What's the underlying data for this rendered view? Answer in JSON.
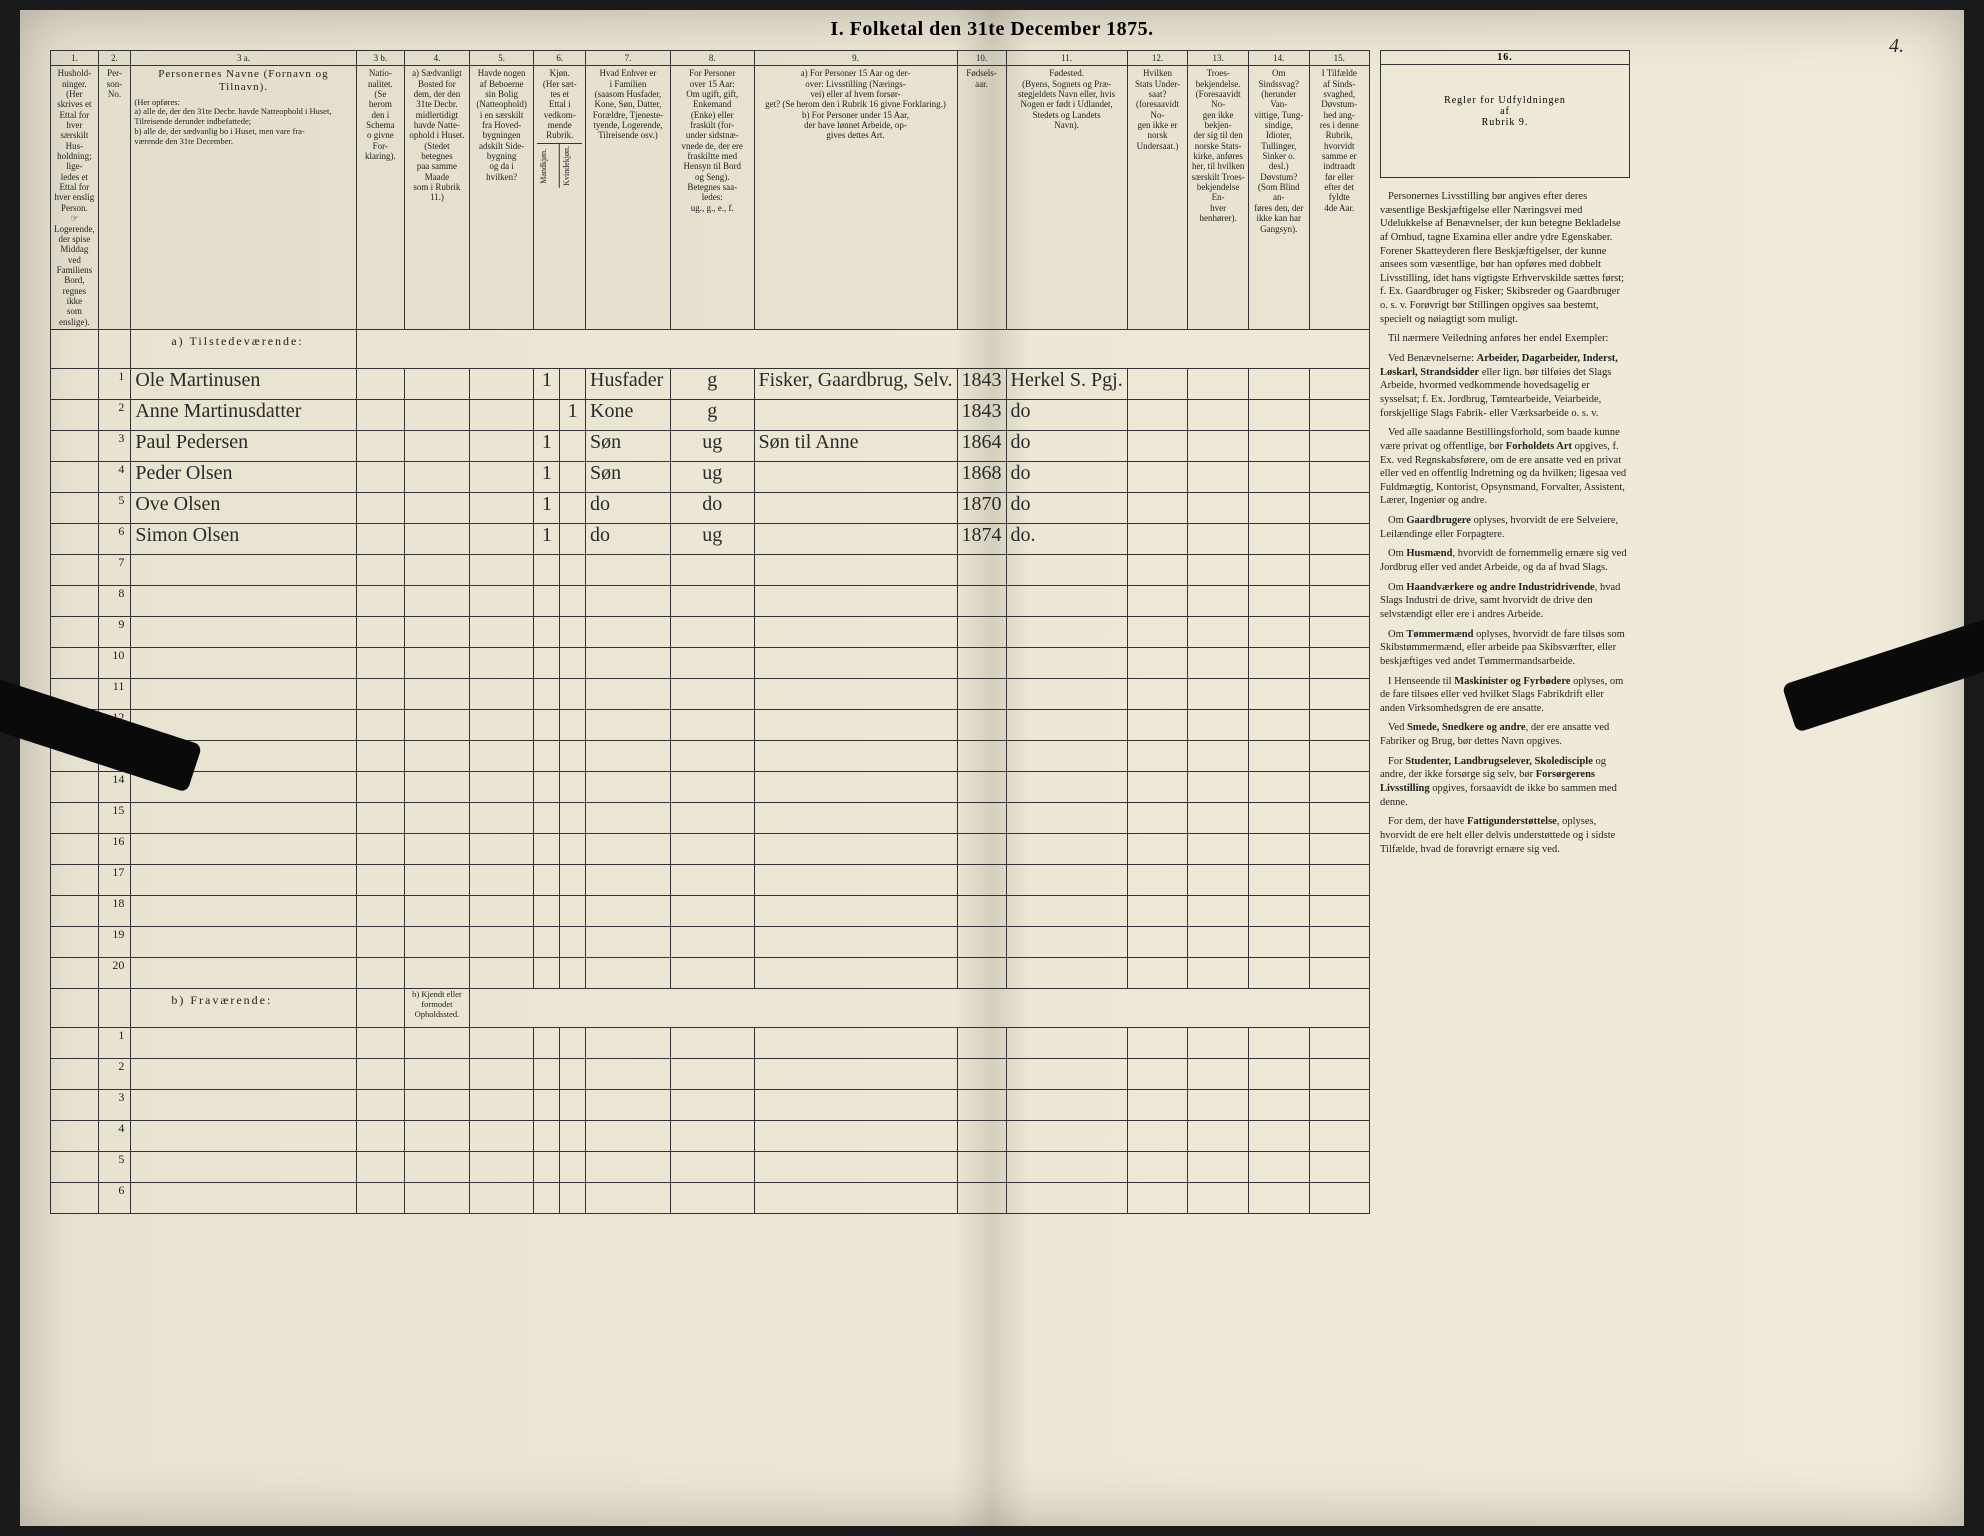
{
  "title": "I.  Folketal den 31te December 1875.",
  "page_number_handwritten": "4.",
  "column_numbers": [
    "1.",
    "2.",
    "3 a.",
    "3 b.",
    "4.",
    "5.",
    "6.",
    "7.",
    "8.",
    "9.",
    "10.",
    "11.",
    "12.",
    "13.",
    "14.",
    "15.",
    "16."
  ],
  "headers": {
    "c1": "Hushold-\nninger.\n(Her skrives et\nEttal for hver\nsærskilt Hus-\nholdning; lige-\nledes et Ettal for\nhver enslig\nPerson.\n☞ Logerende,\nder spise Middag\nved Familiens\nBord, regnes ikke\nsom enslige).",
    "c2": "Per-\nson-\nNo.",
    "c3a_title": "Personernes Navne (Fornavn og Tilnavn).",
    "c3a_sub": "(Her opføres:\na) alle de, der den 31te Decbr. havde Natteophold i Huset, Tilreisende derunder indbefattede;\nb) alle de, der sædvanlig bo i Huset, men vare fra-\nværende den 31te December.",
    "c3b": "Natio-\nnalitet.\n(Se\nherom\nden i\nSchema\no givne\nFor-\nklaring).",
    "c4": "a) Sædvanligt\nBosted for\ndem, der den\n31te Decbr.\nmidlertidigt\nhavde Natte-\nophold i Huset.\n(Stedet betegnes\npaa samme Maade\nsom i Rubrik 11.)",
    "c5": "Havde nogen\naf Beboerne\nsin Bolig\n(Natteophold)\ni en særskilt\nfra Hoved-\nbygningen\nadskilt Side-\nbygning\nog da i\nhvilken?",
    "c6": "Kjøn.\n(Her sæt-\ntes et\nEttal i\nvedkom-\nmende\nRubrik.",
    "c6a": "Mandkjøn.",
    "c6b": "Kvindekjøn.",
    "c7": "Hvad Enhver er\ni Familien\n(saasom Husfader,\nKone, Søn, Datter,\nForældre, Tjeneste-\ntyende, Logerende,\nTilreisende osv.)",
    "c8": "For Personer\nover 15 Aar:\nOm ugift, gift,\nEnkemand\n(Enke) eller\nfraskilt (for-\nunder sidstnæ-\nvnede de, der ere\nfraskiltte med\nHensyn til Bord\nog Seng).\nBetegnes saa-\nledes:\nug., g., e., f.",
    "c9": "a) For Personer 15 Aar og der-\nover: Livsstilling (Nærings-\nvei) eller af hvem forsør-\nget? (Se herom den i Rubrik 16 givne Forklaring.)\nb) For Personer under 15 Aar,\nder have lønnet Arbeide, op-\ngives dettes Art.",
    "c10": "Fødsels-\naar.",
    "c11": "Fødested.\n(Byens, Sognets og Præ-\nstegjeldets Navn eller, hvis\nNogen er født i Udlandet,\nStedets og Landets\nNavn).",
    "c12": "Hvilken\nStats Under-\nsaat?\n(foresaavidt No-\ngen ikke er\nnorsk\nUndersaat.)",
    "c13": "Troes-\nbekjendelse.\n(Foresaavidt No-\ngen ikke bekjen-\nder sig til den\nnorske Stats-\nkirke, anføres\nher, til hvilken\nsærskilt Troes-\nbekjendelse En-\nhver henhører).",
    "c14": "Om\nSindssvag?\n(herunder Van-\nvittige, Tung-\nsindige, Idioter,\nTullinger,\nSinker o. desl.)\nDøvstum?\n(Som Blind an-\nføres den, der\nikke kan har\nGangsyn).",
    "c15": "I Tilfælde\naf Sinds-\nsvaghed,\nDøvstum-\nhed ang-\nres i denne\nRubrik,\nhvorvidt\nsamme er\nindtraadt\nfør eller\nefter det\nfyldte\n4de Aar.",
    "c16": "Regler for Udfyldningen\naf\nRubrik 9."
  },
  "section_a": "a)  Tilstedeværende:",
  "section_b": "b)  Fraværende:",
  "section_b_note": "b) Kjendt eller\nformodet\nOpholdssted.",
  "rows_a": [
    {
      "n": "1",
      "name": "Ole Martinusen",
      "c5": "",
      "m": "1",
      "f": "",
      "rel": "Husfader",
      "ms": "g",
      "occ": "Fisker, Gaardbrug, Selv.",
      "yr": "1843",
      "birthplace": "Herkel S. Pgj."
    },
    {
      "n": "2",
      "name": "Anne Martinusdatter",
      "c5": "",
      "m": "",
      "f": "1",
      "rel": "Kone",
      "ms": "g",
      "occ": "",
      "yr": "1843",
      "birthplace": "do"
    },
    {
      "n": "3",
      "name": "Paul Pedersen",
      "c5": "",
      "m": "1",
      "f": "",
      "rel": "Søn",
      "ms": "ug",
      "occ": "Søn til Anne",
      "yr": "1864",
      "birthplace": "do"
    },
    {
      "n": "4",
      "name": "Peder Olsen",
      "c5": "",
      "m": "1",
      "f": "",
      "rel": "Søn",
      "ms": "ug",
      "occ": "",
      "yr": "1868",
      "birthplace": "do"
    },
    {
      "n": "5",
      "name": "Ove Olsen",
      "c5": "",
      "m": "1",
      "f": "",
      "rel": "do",
      "ms": "do",
      "occ": "",
      "yr": "1870",
      "birthplace": "do"
    },
    {
      "n": "6",
      "name": "Simon Olsen",
      "c5": "",
      "m": "1",
      "f": "",
      "rel": "do",
      "ms": "ug",
      "occ": "",
      "yr": "1874",
      "birthplace": "do."
    },
    {
      "n": "7"
    },
    {
      "n": "8"
    },
    {
      "n": "9"
    },
    {
      "n": "10"
    },
    {
      "n": "11"
    },
    {
      "n": "12"
    },
    {
      "n": "13"
    },
    {
      "n": "14"
    },
    {
      "n": "15"
    },
    {
      "n": "16"
    },
    {
      "n": "17"
    },
    {
      "n": "18"
    },
    {
      "n": "19"
    },
    {
      "n": "20"
    }
  ],
  "rows_b": [
    {
      "n": "1"
    },
    {
      "n": "2"
    },
    {
      "n": "3"
    },
    {
      "n": "4"
    },
    {
      "n": "5"
    },
    {
      "n": "6"
    }
  ],
  "right_text": [
    "Personernes Livsstilling bør angives efter deres væsentlige Beskjæftigelse eller Næringsvei med Udelukkelse af Benævnelser, der kun betegne Bekladelse af Ombud, tagne Examina eller andre ydre Egenskaber. Forener Skatteyderen flere Beskjæftigelser, der kunne ansees som væsentlige, bør han opføres med dobbelt Livsstilling, idet hans vigtigste Erhvervskilde sættes først; f. Ex. Gaardbruger og Fisker; Skibsreder og Gaardbruger o. s. v. Forøvrigt bør Stillingen opgives saa bestemt, specielt og nøiagtigt som muligt.",
    "Til nærmere Veiledning anføres her endel Exempler:",
    "Ved Benævnelserne: <b>Arbeider, Dagarbeider, Inderst, Løskarl, Strandsidder</b> eller lign. bør tilføies det Slags Arbeide, hvormed vedkommende hovedsagelig er sysselsat; f. Ex. Jordbrug, Tømtearbeide, Veiarbeide, forskjellige Slags Fabrik- eller Værksarbeide o. s. v.",
    "Ved alle saadanne Bestillingsforhold, som baade kunne være privat og offentlige, bør <b>Forholdets Art</b> opgives, f. Ex. ved Regnskabsførere, om de ere ansatte ved en privat eller ved en offentlig Indretning og da hvilken; ligesaa ved Fuldmægtig, Kontorist, Opsynsmand, Forvalter, Assistent, Lærer, Ingeniør og andre.",
    "Om <b>Gaardbrugere</b> oplyses, hvorvidt de ere Selveiere, Leilændinge eller Forpagtere.",
    "Om <b>Husmænd</b>, hvorvidt de fornemmelig ernære sig ved Jordbrug eller ved andet Arbeide, og da af hvad Slags.",
    "Om <b>Haandværkere og andre Industridrivende</b>, hvad Slags Industri de drive, samt hvorvidt de drive den selvstændigt eller ere i andres Arbeide.",
    "Om <b>Tømmermænd</b> oplyses, hvorvidt de fare tilsøs som Skibstømmermænd, eller arbeide paa Skibsværfter, eller beskjæftiges ved andet Tømmermandsarbeide.",
    "I Henseende til <b>Maskinister og Fyrbødere</b> oplyses, om de fare tilsøes eller ved hvilket Slags Fabrikdrift eller anden Virksomhedsgren de ere ansatte.",
    "Ved <b>Smede, Snedkere og andre</b>, der ere ansatte ved Fabriker og Brug, bør dettes Navn opgives.",
    "For <b>Studenter, Landbrugselever, Skoledisciple</b> og andre, der ikke forsørge sig selv, bør <b>Forsørgerens Livsstilling</b> opgives, forsaavidt de ikke bo sammen med denne.",
    "For dem, der have <b>Fattigunderstøttelse</b>, oplyses, hvorvidt de ere helt eller delvis understøttede og i sidste Tilfælde, hvad de forøvrigt ernære sig ved."
  ]
}
